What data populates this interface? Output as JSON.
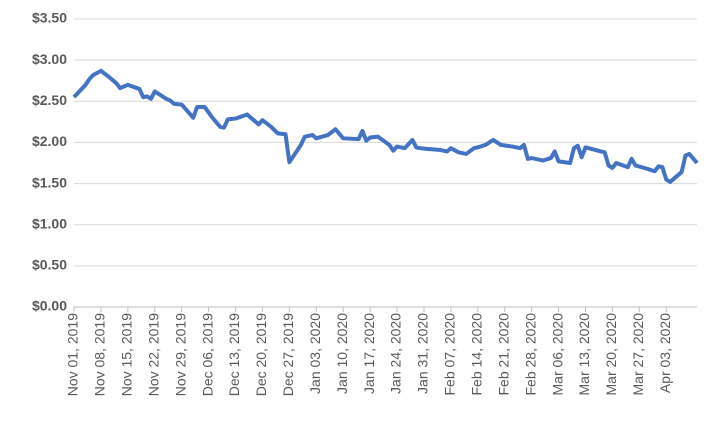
{
  "chart_data": {
    "type": "line",
    "x": [
      "2019-11-01",
      "2019-11-04",
      "2019-11-05",
      "2019-11-06",
      "2019-11-08",
      "2019-11-10",
      "2019-11-12",
      "2019-11-13",
      "2019-11-15",
      "2019-11-18",
      "2019-11-19",
      "2019-11-20",
      "2019-11-21",
      "2019-11-22",
      "2019-11-25",
      "2019-11-26",
      "2019-11-27",
      "2019-11-29",
      "2019-12-02",
      "2019-12-03",
      "2019-12-05",
      "2019-12-07",
      "2019-12-09",
      "2019-12-10",
      "2019-12-11",
      "2019-12-13",
      "2019-12-16",
      "2019-12-19",
      "2019-12-20",
      "2019-12-22",
      "2019-12-24",
      "2019-12-26",
      "2019-12-27",
      "2019-12-30",
      "2019-12-31",
      "2020-01-02",
      "2020-01-03",
      "2020-01-06",
      "2020-01-08",
      "2020-01-10",
      "2020-01-14",
      "2020-01-15",
      "2020-01-16",
      "2020-01-17",
      "2020-01-19",
      "2020-01-22",
      "2020-01-23",
      "2020-01-24",
      "2020-01-26",
      "2020-01-28",
      "2020-01-29",
      "2020-01-30",
      "2020-02-01",
      "2020-02-04",
      "2020-02-06",
      "2020-02-07",
      "2020-02-09",
      "2020-02-11",
      "2020-02-13",
      "2020-02-14",
      "2020-02-16",
      "2020-02-18",
      "2020-02-20",
      "2020-02-23",
      "2020-02-25",
      "2020-02-26",
      "2020-02-27",
      "2020-02-28",
      "2020-03-02",
      "2020-03-04",
      "2020-03-05",
      "2020-03-06",
      "2020-03-09",
      "2020-03-10",
      "2020-03-11",
      "2020-03-12",
      "2020-03-13",
      "2020-03-17",
      "2020-03-18",
      "2020-03-19",
      "2020-03-20",
      "2020-03-21",
      "2020-03-24",
      "2020-03-25",
      "2020-03-26",
      "2020-03-29",
      "2020-03-31",
      "2020-04-01",
      "2020-04-02",
      "2020-04-03",
      "2020-04-04",
      "2020-04-07",
      "2020-04-08",
      "2020-04-09",
      "2020-04-11"
    ],
    "series": [
      {
        "color": "#4472c4",
        "values": [
          2.55,
          2.7,
          2.77,
          2.82,
          2.87,
          2.8,
          2.72,
          2.66,
          2.7,
          2.65,
          2.55,
          2.56,
          2.53,
          2.62,
          2.53,
          2.51,
          2.47,
          2.46,
          2.3,
          2.43,
          2.43,
          2.3,
          2.19,
          2.18,
          2.28,
          2.29,
          2.34,
          2.22,
          2.27,
          2.2,
          2.11,
          2.1,
          1.76,
          1.97,
          2.07,
          2.09,
          2.05,
          2.09,
          2.16,
          2.05,
          2.04,
          2.14,
          2.02,
          2.06,
          2.07,
          1.97,
          1.9,
          1.95,
          1.93,
          2.03,
          1.94,
          1.93,
          1.92,
          1.91,
          1.89,
          1.93,
          1.88,
          1.86,
          1.93,
          1.94,
          1.97,
          2.03,
          1.97,
          1.95,
          1.93,
          1.97,
          1.8,
          1.81,
          1.78,
          1.81,
          1.89,
          1.77,
          1.75,
          1.93,
          1.96,
          1.82,
          1.94,
          1.89,
          1.88,
          1.72,
          1.69,
          1.75,
          1.7,
          1.8,
          1.72,
          1.68,
          1.65,
          1.71,
          1.7,
          1.55,
          1.52,
          1.64,
          1.84,
          1.86,
          1.75
        ]
      }
    ],
    "xlim": [
      "2019-11-01",
      "2020-04-11"
    ],
    "xticks": [
      {
        "value": "2019-11-01",
        "label": "Nov 01, 2019"
      },
      {
        "value": "2019-11-08",
        "label": "Nov 08, 2019"
      },
      {
        "value": "2019-11-15",
        "label": "Nov 15, 2019"
      },
      {
        "value": "2019-11-22",
        "label": "Nov 22, 2019"
      },
      {
        "value": "2019-11-29",
        "label": "Nov 29, 2019"
      },
      {
        "value": "2019-12-06",
        "label": "Dec 06, 2019"
      },
      {
        "value": "2019-12-13",
        "label": "Dec 13, 2019"
      },
      {
        "value": "2019-12-20",
        "label": "Dec 20, 2019"
      },
      {
        "value": "2019-12-27",
        "label": "Dec 27, 2019"
      },
      {
        "value": "2020-01-03",
        "label": "Jan 03, 2020"
      },
      {
        "value": "2020-01-10",
        "label": "Jan 10, 2020"
      },
      {
        "value": "2020-01-17",
        "label": "Jan 17, 2020"
      },
      {
        "value": "2020-01-24",
        "label": "Jan 24, 2020"
      },
      {
        "value": "2020-01-31",
        "label": "Jan 31, 2020"
      },
      {
        "value": "2020-02-07",
        "label": "Feb 07, 2020"
      },
      {
        "value": "2020-02-14",
        "label": "Feb 14, 2020"
      },
      {
        "value": "2020-02-21",
        "label": "Feb 21, 2020"
      },
      {
        "value": "2020-02-28",
        "label": "Feb 28, 2020"
      },
      {
        "value": "2020-03-06",
        "label": "Mar 06, 2020"
      },
      {
        "value": "2020-03-13",
        "label": "Mar 13, 2020"
      },
      {
        "value": "2020-03-20",
        "label": "Mar 20, 2020"
      },
      {
        "value": "2020-03-27",
        "label": "Mar 27, 2020"
      },
      {
        "value": "2020-04-03",
        "label": "Apr 03, 2020"
      }
    ],
    "ylim": [
      0,
      3.5
    ],
    "yticks": [
      {
        "value": 0,
        "label": "$0.00"
      },
      {
        "value": 0.5,
        "label": "$0.50"
      },
      {
        "value": 1,
        "label": "$1.00"
      },
      {
        "value": 1.5,
        "label": "$1.50"
      },
      {
        "value": 2,
        "label": "$2.00"
      },
      {
        "value": 2.5,
        "label": "$2.50"
      },
      {
        "value": 3,
        "label": "$3.00"
      },
      {
        "value": 3.5,
        "label": "$3.50"
      }
    ],
    "grid": true
  }
}
